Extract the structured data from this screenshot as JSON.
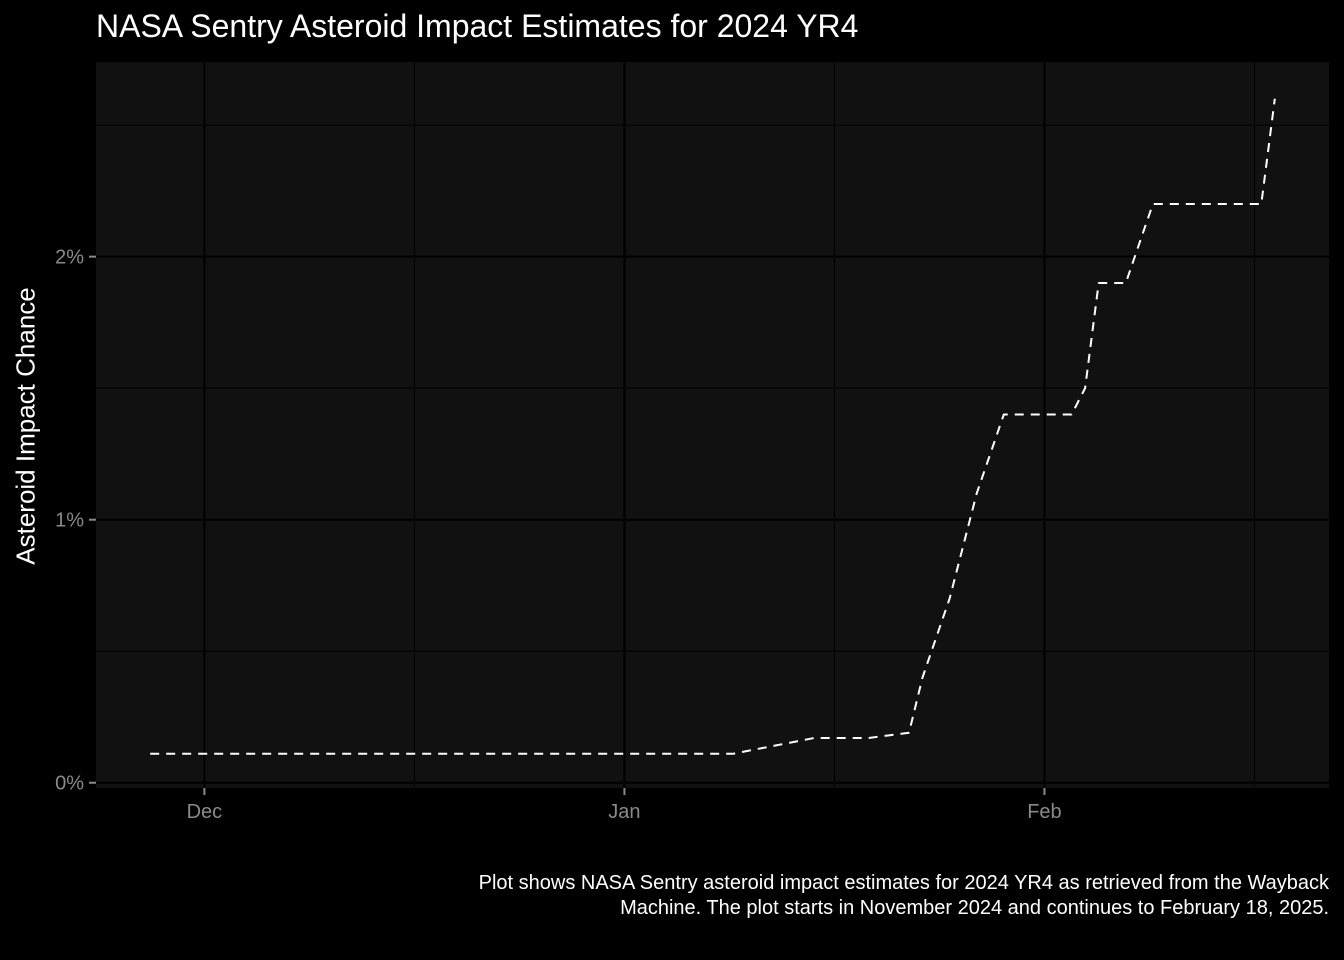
{
  "chart_data": {
    "type": "line",
    "title": "NASA Sentry Asteroid Impact Estimates for 2024 YR4",
    "xlabel": "",
    "ylabel": "Asteroid Impact Chance",
    "caption": "Plot shows NASA Sentry asteroid impact estimates for 2024 YR4 as retrieved from the Wayback Machine. The plot starts in November 2024 and continues to February 18, 2025.",
    "x_ticks": [
      {
        "date": "2024-12-01",
        "label": "Dec"
      },
      {
        "date": "2025-01-01",
        "label": "Jan"
      },
      {
        "date": "2025-02-01",
        "label": "Feb"
      }
    ],
    "y_ticks": [
      {
        "value": 0,
        "label": "0%"
      },
      {
        "value": 1,
        "label": "1%"
      },
      {
        "value": 2,
        "label": "2%"
      }
    ],
    "xlim": [
      "2024-11-23",
      "2025-02-22"
    ],
    "ylim": [
      -0.02,
      2.74
    ],
    "grid": true,
    "line_style": "dashed",
    "line_color": "#ffffff",
    "panel_color": "#111111",
    "series": [
      {
        "x": [
          "2024-11-27",
          "2025-01-09",
          "2025-01-15",
          "2025-01-19",
          "2025-01-22",
          "2025-01-23",
          "2025-01-25",
          "2025-01-27",
          "2025-01-29",
          "2025-02-03",
          "2025-02-04",
          "2025-02-05",
          "2025-02-07",
          "2025-02-08",
          "2025-02-09",
          "2025-02-10",
          "2025-02-11",
          "2025-02-17",
          "2025-02-18"
        ],
        "values": [
          0.11,
          0.11,
          0.17,
          0.17,
          0.19,
          0.4,
          0.7,
          1.1,
          1.4,
          1.4,
          1.5,
          1.9,
          1.9,
          2.05,
          2.2,
          2.2,
          2.2,
          2.2,
          2.6
        ]
      }
    ]
  }
}
